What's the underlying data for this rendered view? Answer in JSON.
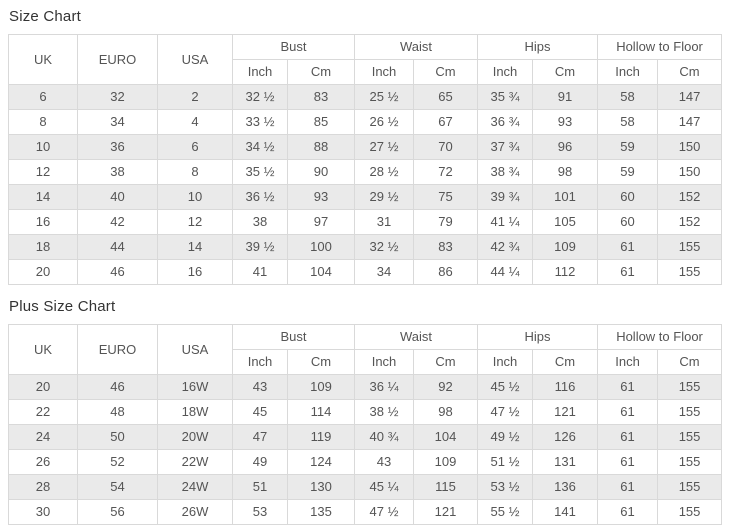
{
  "colors": {
    "background": "#ffffff",
    "table_border": "#d9d9d9",
    "row_stripe": "#eaeaea",
    "cell_text": "#555555",
    "title_text": "#333333"
  },
  "chart_data": [
    {
      "type": "table",
      "title": "Size Chart",
      "header": {
        "uk": "UK",
        "euro": "EURO",
        "usa": "USA",
        "groups": [
          "Bust",
          "Waist",
          "Hips",
          "Hollow to Floor"
        ],
        "sub_inch": "Inch",
        "sub_cm": "Cm"
      },
      "columns": [
        "UK",
        "EURO",
        "USA",
        "Bust (Inch)",
        "Bust (Cm)",
        "Waist (Inch)",
        "Waist (Cm)",
        "Hips (Inch)",
        "Hips (Cm)",
        "Hollow to Floor (Inch)",
        "Hollow to Floor (Cm)"
      ],
      "rows": [
        [
          "6",
          "32",
          "2",
          "32 ½",
          "83",
          "25 ½",
          "65",
          "35 ¾",
          "91",
          "58",
          "147"
        ],
        [
          "8",
          "34",
          "4",
          "33 ½",
          "85",
          "26 ½",
          "67",
          "36 ¾",
          "93",
          "58",
          "147"
        ],
        [
          "10",
          "36",
          "6",
          "34 ½",
          "88",
          "27 ½",
          "70",
          "37 ¾",
          "96",
          "59",
          "150"
        ],
        [
          "12",
          "38",
          "8",
          "35 ½",
          "90",
          "28 ½",
          "72",
          "38 ¾",
          "98",
          "59",
          "150"
        ],
        [
          "14",
          "40",
          "10",
          "36 ½",
          "93",
          "29 ½",
          "75",
          "39 ¾",
          "101",
          "60",
          "152"
        ],
        [
          "16",
          "42",
          "12",
          "38",
          "97",
          "31",
          "79",
          "41 ¼",
          "105",
          "60",
          "152"
        ],
        [
          "18",
          "44",
          "14",
          "39 ½",
          "100",
          "32 ½",
          "83",
          "42 ¾",
          "109",
          "61",
          "155"
        ],
        [
          "20",
          "46",
          "16",
          "41",
          "104",
          "34",
          "86",
          "44 ¼",
          "112",
          "61",
          "155"
        ]
      ]
    },
    {
      "type": "table",
      "title": "Plus Size Chart",
      "header": {
        "uk": "UK",
        "euro": "EURO",
        "usa": "USA",
        "groups": [
          "Bust",
          "Waist",
          "Hips",
          "Hollow to Floor"
        ],
        "sub_inch": "Inch",
        "sub_cm": "Cm"
      },
      "columns": [
        "UK",
        "EURO",
        "USA",
        "Bust (Inch)",
        "Bust (Cm)",
        "Waist (Inch)",
        "Waist (Cm)",
        "Hips (Inch)",
        "Hips (Cm)",
        "Hollow to Floor (Inch)",
        "Hollow to Floor (Cm)"
      ],
      "rows": [
        [
          "20",
          "46",
          "16W",
          "43",
          "109",
          "36 ¼",
          "92",
          "45 ½",
          "116",
          "61",
          "155"
        ],
        [
          "22",
          "48",
          "18W",
          "45",
          "114",
          "38 ½",
          "98",
          "47 ½",
          "121",
          "61",
          "155"
        ],
        [
          "24",
          "50",
          "20W",
          "47",
          "119",
          "40 ¾",
          "104",
          "49 ½",
          "126",
          "61",
          "155"
        ],
        [
          "26",
          "52",
          "22W",
          "49",
          "124",
          "43",
          "109",
          "51 ½",
          "131",
          "61",
          "155"
        ],
        [
          "28",
          "54",
          "24W",
          "51",
          "130",
          "45 ¼",
          "115",
          "53 ½",
          "136",
          "61",
          "155"
        ],
        [
          "30",
          "56",
          "26W",
          "53",
          "135",
          "47 ½",
          "121",
          "55 ½",
          "141",
          "61",
          "155"
        ]
      ]
    }
  ]
}
